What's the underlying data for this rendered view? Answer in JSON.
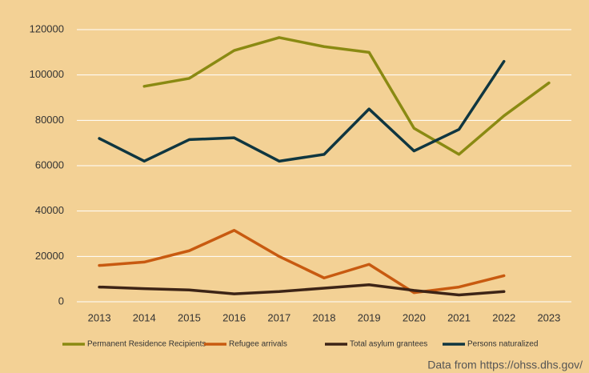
{
  "chart_data": {
    "type": "line",
    "categories": [
      "2013",
      "2014",
      "2015",
      "2016",
      "2017",
      "2018",
      "2019",
      "2020",
      "2021",
      "2022",
      "2023"
    ],
    "series": [
      {
        "name": "Permanent Residence Recipients",
        "color": "#8a8a12",
        "values": [
          null,
          95000,
          98500,
          110800,
          116500,
          112500,
          110000,
          76500,
          65000,
          82000,
          96500
        ]
      },
      {
        "name": "Refugee arrivals",
        "color": "#c85a10",
        "values": [
          16000,
          17500,
          22500,
          31500,
          20000,
          10500,
          16500,
          4000,
          6500,
          11500,
          null
        ]
      },
      {
        "name": "Total asylum grantees",
        "color": "#3d2416",
        "values": [
          6500,
          5800,
          5200,
          3500,
          4500,
          6000,
          7500,
          5000,
          3000,
          4500,
          null
        ]
      },
      {
        "name": "Persons naturalized",
        "color": "#0f3640",
        "values": [
          72000,
          62000,
          71500,
          72300,
          62000,
          65000,
          85000,
          66500,
          76000,
          106000,
          null
        ]
      }
    ],
    "ylim": [
      0,
      120000
    ],
    "yticks": [
      0,
      20000,
      40000,
      60000,
      80000,
      100000,
      120000
    ],
    "grid": true,
    "legend": "bottom",
    "annotation": "Data from https://ohss.dhs.gov/"
  }
}
